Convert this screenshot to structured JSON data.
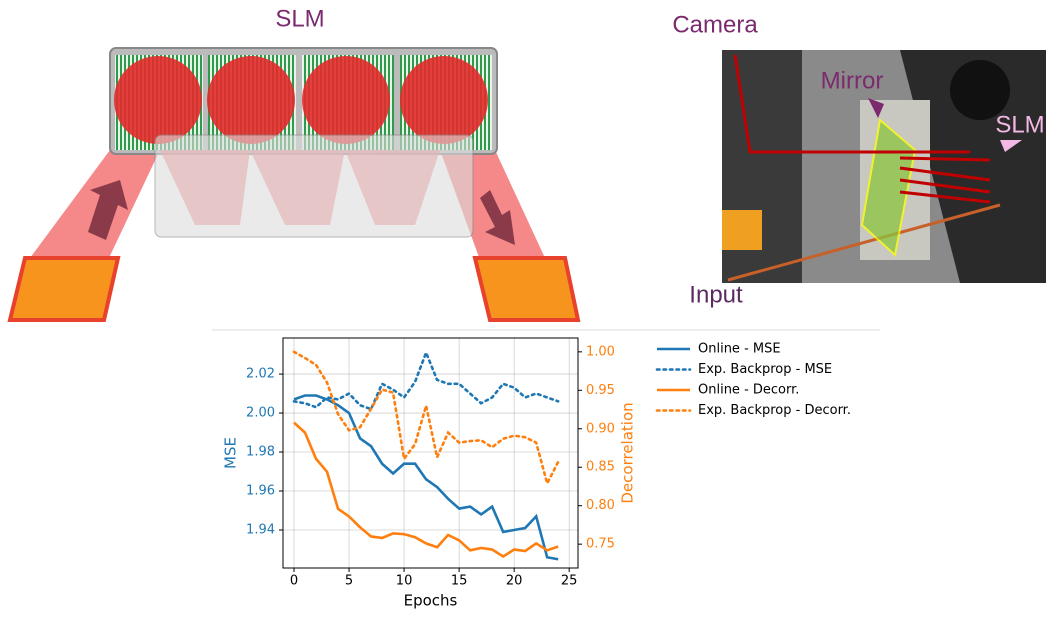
{
  "diagram": {
    "title": "SLM"
  },
  "photo": {
    "labels": [
      "Camera",
      "Mirror",
      "SLM",
      "Input"
    ]
  },
  "chart_data": {
    "type": "line",
    "x_label": "Epochs",
    "y_label": "MSE",
    "y2_label": "Decorrelation",
    "x": [
      0,
      1,
      2,
      3,
      4,
      5,
      6,
      7,
      8,
      9,
      10,
      11,
      12,
      13,
      14,
      15,
      16,
      17,
      18,
      19,
      20,
      21,
      22,
      23,
      24
    ],
    "xlim": [
      -1,
      25.8
    ],
    "xticks": [
      0,
      5,
      10,
      15,
      20,
      25
    ],
    "ylim": [
      1.9205,
      2.0385
    ],
    "yticks": [
      1.94,
      1.96,
      1.98,
      {
        "value": 2.0,
        "label": "2.00"
      },
      2.02
    ],
    "y2lim": [
      0.719,
      1.018
    ],
    "y2ticks": [
      0.75,
      {
        "value": 0.8,
        "label": "0.80"
      },
      0.85,
      {
        "value": 0.9,
        "label": "0.90"
      },
      0.95,
      {
        "value": 1.0,
        "label": "1.00"
      }
    ],
    "grid": true,
    "legend": "outside right",
    "series": [
      {
        "name": "Online - MSE",
        "color": "#1f77b4",
        "linestyle": "solid",
        "values": [
          2.007,
          2.009,
          2.009,
          2.007,
          2.004,
          2.0,
          1.987,
          1.983,
          1.974,
          1.969,
          1.974,
          1.974,
          1.966,
          1.962,
          1.956,
          1.951,
          1.952,
          1.948,
          1.952,
          1.939,
          1.94,
          1.941,
          1.947,
          1.926,
          1.925
        ]
      },
      {
        "name": "Exp. Backprop - MSE",
        "color": "#1f77b4",
        "linestyle": "dotted",
        "values": [
          2.006,
          2.005,
          2.003,
          2.008,
          2.007,
          2.01,
          2.004,
          2.002,
          2.015,
          2.012,
          2.008,
          2.016,
          2.031,
          2.017,
          2.015,
          2.015,
          2.01,
          2.005,
          2.008,
          2.015,
          2.013,
          2.008,
          2.01,
          2.008,
          2.006
        ]
      },
      {
        "name": "Online - Decorr.",
        "color": "#ff7f0e",
        "linestyle": "solid",
        "axis": "y2",
        "values": [
          0.908,
          0.895,
          0.861,
          0.844,
          0.796,
          0.786,
          0.772,
          0.76,
          0.758,
          0.764,
          0.763,
          0.759,
          0.751,
          0.746,
          0.762,
          0.755,
          0.742,
          0.745,
          0.743,
          0.734,
          0.743,
          0.741,
          0.751,
          0.742,
          0.747
        ]
      },
      {
        "name": "Exp. Backprop - Decorr.",
        "color": "#ff7f0e",
        "linestyle": "dotted",
        "axis": "y2",
        "values": [
          1.0,
          0.992,
          0.983,
          0.96,
          0.919,
          0.898,
          0.902,
          0.926,
          0.951,
          0.947,
          0.861,
          0.88,
          0.93,
          0.863,
          0.895,
          0.882,
          0.884,
          0.885,
          0.876,
          0.887,
          0.891,
          0.889,
          0.882,
          0.829,
          0.857
        ]
      }
    ]
  }
}
